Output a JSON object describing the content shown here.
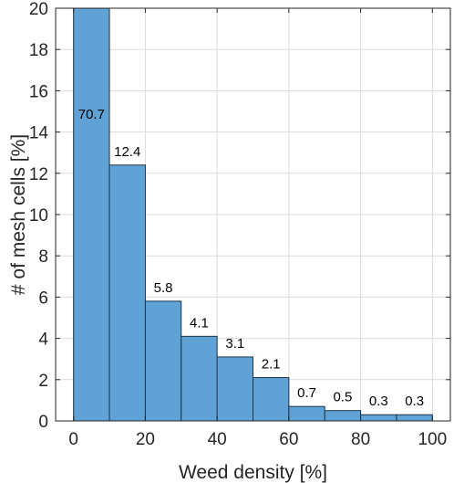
{
  "chart_data": {
    "type": "bar",
    "subtype": "histogram",
    "bin_edges": [
      0,
      10,
      20,
      30,
      40,
      50,
      60,
      70,
      80,
      90,
      100
    ],
    "values": [
      70.7,
      12.4,
      5.8,
      4.1,
      3.1,
      2.1,
      0.7,
      0.5,
      0.3,
      0.3
    ],
    "data_labels": [
      "70.7",
      "12.4",
      "5.8",
      "4.1",
      "3.1",
      "2.1",
      "0.7",
      "0.5",
      "0.3",
      "0.3"
    ],
    "xlabel": "Weed density [%]",
    "ylabel": "# of mesh cells [%]",
    "xlim": [
      -5,
      105
    ],
    "ylim": [
      0,
      20
    ],
    "xticks": [
      0,
      20,
      40,
      60,
      80,
      100
    ],
    "yticks": [
      0,
      2,
      4,
      6,
      8,
      10,
      12,
      14,
      16,
      18,
      20
    ],
    "grid": true,
    "colors": {
      "bar_fill": "#5fa3d6",
      "bar_edge": "#1f3347",
      "grid": "#dcdcdc",
      "axis": "#262626"
    }
  }
}
